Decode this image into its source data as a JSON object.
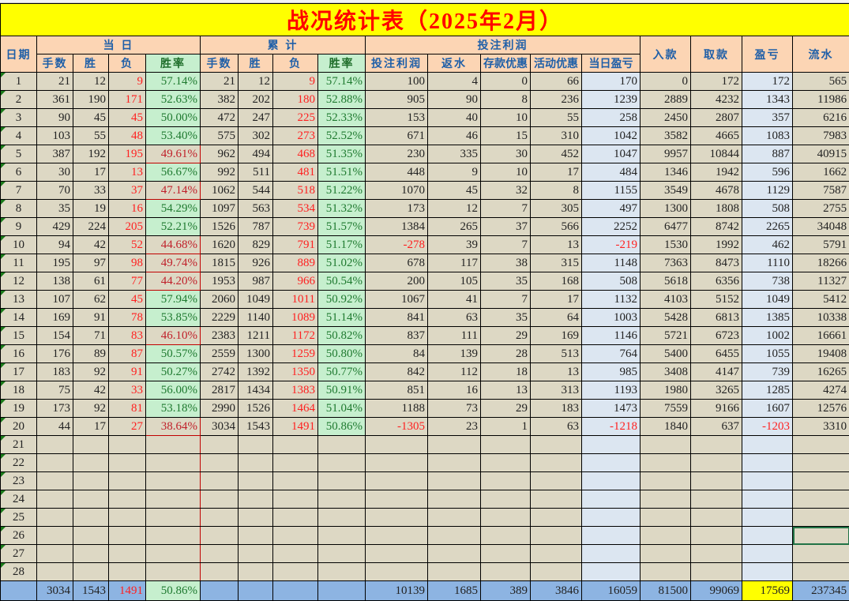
{
  "title": "战况统计表（2025年2月）",
  "headers": {
    "date": "日期",
    "group_today": "当 日",
    "group_cumulative": "累 计",
    "group_profit": "投注利润",
    "deposit": "入款",
    "withdraw": "取款",
    "pnl": "盈亏",
    "turnover": "流水",
    "sub": [
      "手数",
      "胜",
      "负",
      "胜率",
      "手数",
      "胜",
      "负",
      "胜率",
      "投注利润",
      "返水",
      "存款优惠",
      "活动优惠",
      "当日盈亏"
    ]
  },
  "colors": {
    "title_bg": "#ffff00",
    "title_text": "#ff0000",
    "header_bg": "#fcd5b4",
    "cell_bg": "#ddd8c4",
    "rate_good_bg": "#c6efce",
    "highlight_blue": "#dce6f1",
    "total_bg": "#8db4e2",
    "negative": "#ff2020"
  },
  "rows": [
    [
      "1",
      "21",
      "12",
      "9",
      "57.14%",
      "21",
      "12",
      "9",
      "57.14%",
      "100",
      "4",
      "0",
      "66",
      "170",
      "0",
      "172",
      "172",
      "565"
    ],
    [
      "2",
      "361",
      "190",
      "171",
      "52.63%",
      "382",
      "202",
      "180",
      "52.88%",
      "905",
      "90",
      "8",
      "236",
      "1239",
      "2889",
      "4232",
      "1343",
      "11986"
    ],
    [
      "3",
      "90",
      "45",
      "45",
      "50.00%",
      "472",
      "247",
      "225",
      "52.33%",
      "153",
      "40",
      "10",
      "55",
      "258",
      "2450",
      "2807",
      "357",
      "6216"
    ],
    [
      "4",
      "103",
      "55",
      "48",
      "53.40%",
      "575",
      "302",
      "273",
      "52.52%",
      "671",
      "46",
      "15",
      "310",
      "1042",
      "3582",
      "4665",
      "1083",
      "7983"
    ],
    [
      "5",
      "387",
      "192",
      "195",
      "49.61%",
      "962",
      "494",
      "468",
      "51.35%",
      "230",
      "335",
      "30",
      "452",
      "1047",
      "9957",
      "10844",
      "887",
      "40915"
    ],
    [
      "6",
      "30",
      "17",
      "13",
      "56.67%",
      "992",
      "511",
      "481",
      "51.51%",
      "448",
      "9",
      "10",
      "17",
      "484",
      "1346",
      "1942",
      "596",
      "1662"
    ],
    [
      "7",
      "70",
      "33",
      "37",
      "47.14%",
      "1062",
      "544",
      "518",
      "51.22%",
      "1070",
      "45",
      "32",
      "8",
      "1155",
      "3549",
      "4678",
      "1129",
      "7587"
    ],
    [
      "8",
      "35",
      "19",
      "16",
      "54.29%",
      "1097",
      "563",
      "534",
      "51.32%",
      "173",
      "12",
      "7",
      "305",
      "497",
      "1300",
      "1808",
      "508",
      "2755"
    ],
    [
      "9",
      "429",
      "224",
      "205",
      "52.21%",
      "1526",
      "787",
      "739",
      "51.57%",
      "1384",
      "265",
      "37",
      "566",
      "2252",
      "6477",
      "8742",
      "2265",
      "34048"
    ],
    [
      "10",
      "94",
      "42",
      "52",
      "44.68%",
      "1620",
      "829",
      "791",
      "51.17%",
      "-278",
      "39",
      "7",
      "13",
      "-219",
      "1530",
      "1992",
      "462",
      "5791"
    ],
    [
      "11",
      "195",
      "97",
      "98",
      "49.74%",
      "1815",
      "926",
      "889",
      "51.02%",
      "678",
      "117",
      "38",
      "315",
      "1148",
      "7363",
      "8473",
      "1110",
      "18266"
    ],
    [
      "12",
      "138",
      "61",
      "77",
      "44.20%",
      "1953",
      "987",
      "966",
      "50.54%",
      "200",
      "105",
      "35",
      "168",
      "508",
      "5618",
      "6356",
      "738",
      "11327"
    ],
    [
      "13",
      "107",
      "62",
      "45",
      "57.94%",
      "2060",
      "1049",
      "1011",
      "50.92%",
      "1067",
      "41",
      "7",
      "17",
      "1132",
      "4103",
      "5152",
      "1049",
      "5412"
    ],
    [
      "14",
      "169",
      "91",
      "78",
      "53.85%",
      "2229",
      "1140",
      "1089",
      "51.14%",
      "841",
      "63",
      "35",
      "64",
      "1003",
      "5428",
      "6813",
      "1385",
      "10338"
    ],
    [
      "15",
      "154",
      "71",
      "83",
      "46.10%",
      "2383",
      "1211",
      "1172",
      "50.82%",
      "837",
      "111",
      "29",
      "169",
      "1146",
      "5721",
      "6723",
      "1002",
      "16661"
    ],
    [
      "16",
      "176",
      "89",
      "87",
      "50.57%",
      "2559",
      "1300",
      "1259",
      "50.80%",
      "84",
      "139",
      "28",
      "513",
      "764",
      "5400",
      "6455",
      "1055",
      "19408"
    ],
    [
      "17",
      "183",
      "92",
      "91",
      "50.27%",
      "2742",
      "1392",
      "1350",
      "50.77%",
      "842",
      "112",
      "18",
      "13",
      "985",
      "3408",
      "4147",
      "739",
      "16265"
    ],
    [
      "18",
      "75",
      "42",
      "33",
      "56.00%",
      "2817",
      "1434",
      "1383",
      "50.91%",
      "851",
      "16",
      "13",
      "313",
      "1193",
      "1980",
      "3265",
      "1285",
      "4274"
    ],
    [
      "19",
      "173",
      "92",
      "81",
      "53.18%",
      "2990",
      "1526",
      "1464",
      "51.04%",
      "1188",
      "73",
      "29",
      "183",
      "1473",
      "7559",
      "9166",
      "1607",
      "12576"
    ],
    [
      "20",
      "44",
      "17",
      "27",
      "38.64%",
      "3034",
      "1543",
      "1491",
      "50.86%",
      "-1305",
      "23",
      "1",
      "63",
      "-1218",
      "1840",
      "637",
      "-1203",
      "3310"
    ],
    [
      "21",
      "",
      "",
      "",
      "",
      "",
      "",
      "",
      "",
      "",
      "",
      "",
      "",
      "",
      "",
      "",
      "",
      ""
    ],
    [
      "22",
      "",
      "",
      "",
      "",
      "",
      "",
      "",
      "",
      "",
      "",
      "",
      "",
      "",
      "",
      "",
      "",
      ""
    ],
    [
      "23",
      "",
      "",
      "",
      "",
      "",
      "",
      "",
      "",
      "",
      "",
      "",
      "",
      "",
      "",
      "",
      "",
      ""
    ],
    [
      "24",
      "",
      "",
      "",
      "",
      "",
      "",
      "",
      "",
      "",
      "",
      "",
      "",
      "",
      "",
      "",
      "",
      ""
    ],
    [
      "25",
      "",
      "",
      "",
      "",
      "",
      "",
      "",
      "",
      "",
      "",
      "",
      "",
      "",
      "",
      "",
      "",
      ""
    ],
    [
      "26",
      "",
      "",
      "",
      "",
      "",
      "",
      "",
      "",
      "",
      "",
      "",
      "",
      "",
      "",
      "",
      "",
      ""
    ],
    [
      "27",
      "",
      "",
      "",
      "",
      "",
      "",
      "",
      "",
      "",
      "",
      "",
      "",
      "",
      "",
      "",
      "",
      ""
    ],
    [
      "28",
      "",
      "",
      "",
      "",
      "",
      "",
      "",
      "",
      "",
      "",
      "",
      "",
      "",
      "",
      "",
      "",
      ""
    ]
  ],
  "total": [
    "",
    "3034",
    "1543",
    "1491",
    "50.86%",
    "",
    "",
    "",
    "",
    "10139",
    "1685",
    "389",
    "3846",
    "16059",
    "81500",
    "99069",
    "17569",
    "237345"
  ]
}
